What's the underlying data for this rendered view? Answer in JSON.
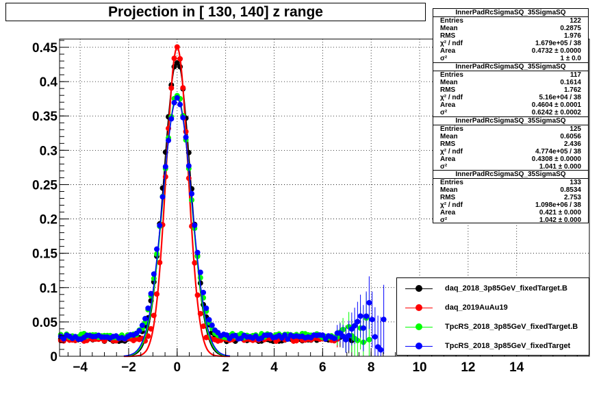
{
  "chart_data": {
    "type": "scatter",
    "title": "Projection in [ 130, 140] z range",
    "xlim": [
      -4.85,
      17.0
    ],
    "ylim": [
      0,
      0.462
    ],
    "x_ticks": [
      -4,
      -2,
      0,
      2,
      4,
      6,
      8,
      10,
      12,
      14
    ],
    "y_ticks": [
      0,
      0.05,
      0.1,
      0.15,
      0.2,
      0.25,
      0.3,
      0.35,
      0.4,
      0.45
    ],
    "x_tick_labels": [
      "−4",
      "−2",
      "0",
      "2",
      "4",
      "6",
      "8",
      "10",
      "12",
      "14"
    ],
    "y_tick_labels": [
      "0",
      "0.05",
      "0.1",
      "0.15",
      "0.2",
      "0.25",
      "0.3",
      "0.35",
      "0.4",
      "0.45"
    ],
    "grid": true,
    "legend_position": "bottom-right",
    "series": [
      {
        "name": "daq_2018_3p85GeV_fixedTarget.B",
        "color": "#000000",
        "peak": 0.43,
        "sigma": 0.55,
        "baseline": 0.025,
        "x_max": 7.3
      },
      {
        "name": "daq_2019AuAu19",
        "color": "#ff0000",
        "peak": 0.45,
        "sigma": 0.45,
        "baseline": 0.025,
        "x_max": 6.8
      },
      {
        "name": "TpcRS_2018_3p85GeV_fixedTarget.B",
        "color": "#00ff00",
        "peak": 0.38,
        "sigma": 0.58,
        "baseline": 0.03,
        "x_max": 8.0
      },
      {
        "name": "TpcRS_2018_3p85GeV_fixedTarget",
        "color": "#0000ff",
        "peak": 0.375,
        "sigma": 0.6,
        "baseline": 0.028,
        "x_max": 8.6
      }
    ]
  },
  "stats": [
    {
      "title": "InnerPadRcSigmaSQ_35SigmaSQ",
      "rows": [
        {
          "label": "Entries",
          "value": "122"
        },
        {
          "label": "Mean",
          "value": "0.2875"
        },
        {
          "label": "RMS",
          "value": "1.976"
        },
        {
          "label": "χ² / ndf",
          "value": "1.679e+05 / 38"
        },
        {
          "label": "Area",
          "value": "0.4732 ± 0.0000"
        },
        {
          "label": "σ²",
          "value": "1 ± 0.0"
        }
      ]
    },
    {
      "title": "InnerPadRcSigmaSQ_35SigmaSQ",
      "rows": [
        {
          "label": "Entries",
          "value": "117"
        },
        {
          "label": "Mean",
          "value": "0.1614"
        },
        {
          "label": "RMS",
          "value": "1.762"
        },
        {
          "label": "χ² / ndf",
          "value": "5.16e+04 / 38"
        },
        {
          "label": "Area",
          "value": "0.4604 ± 0.0001"
        },
        {
          "label": "σ²",
          "value": "0.6242 ± 0.0002"
        }
      ]
    },
    {
      "title": "InnerPadRcSigmaSQ_35SigmaSQ",
      "rows": [
        {
          "label": "Entries",
          "value": "125"
        },
        {
          "label": "Mean",
          "value": "0.6056"
        },
        {
          "label": "RMS",
          "value": "2.436"
        },
        {
          "label": "χ² / ndf",
          "value": "4.774e+05 / 38"
        },
        {
          "label": "Area",
          "value": "0.4308 ± 0.0000"
        },
        {
          "label": "σ²",
          "value": "1.041 ± 0.000"
        }
      ]
    },
    {
      "title": "InnerPadRcSigmaSQ_35SigmaSQ",
      "rows": [
        {
          "label": "Entries",
          "value": "133"
        },
        {
          "label": "Mean",
          "value": "0.8534"
        },
        {
          "label": "RMS",
          "value": "2.753"
        },
        {
          "label": "χ² / ndf",
          "value": "1.098e+06 / 38"
        },
        {
          "label": "Area",
          "value": "0.421 ± 0.000"
        },
        {
          "label": "σ²",
          "value": "1.042 ± 0.000"
        }
      ]
    }
  ]
}
